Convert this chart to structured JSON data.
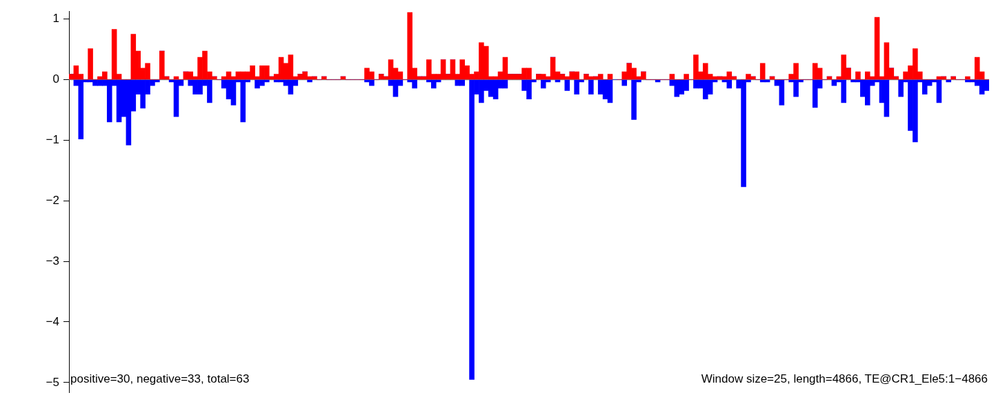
{
  "chart_data": {
    "type": "bar",
    "stacked": true,
    "tick_labels": "y",
    "legend": false,
    "grid": false,
    "categories": [
      null,
      null,
      null,
      null,
      null,
      null,
      null,
      null,
      null,
      null,
      null,
      null,
      null,
      null,
      null,
      null,
      null,
      null,
      null,
      null,
      null,
      null,
      null,
      null,
      null,
      null,
      null,
      null,
      null,
      null,
      null,
      null,
      null,
      null,
      null,
      null,
      null,
      null,
      null,
      null,
      null,
      null,
      null,
      null,
      null,
      null,
      null,
      null,
      null,
      null,
      null,
      null,
      null,
      null,
      null,
      null,
      null,
      null,
      null,
      null,
      null,
      null,
      null,
      null,
      null,
      null,
      null,
      null,
      null,
      null,
      null,
      null,
      null,
      null,
      null,
      null,
      null,
      null,
      null,
      null,
      null,
      null,
      null,
      null,
      null,
      null,
      null,
      null,
      null,
      null,
      null,
      null,
      null,
      null,
      null,
      null,
      null,
      null,
      null,
      null,
      null,
      null,
      null,
      null,
      null,
      null,
      null,
      null,
      null,
      null,
      null,
      null,
      null,
      null,
      null,
      null,
      null,
      null,
      null,
      null,
      null,
      null,
      null,
      null,
      null,
      null,
      null,
      null,
      null,
      null,
      null,
      null,
      null,
      null,
      null,
      null,
      null,
      null,
      null,
      null,
      null,
      null,
      null,
      null,
      null,
      null,
      null,
      null,
      null,
      null,
      null,
      null,
      null,
      null,
      null,
      null,
      null,
      null,
      null,
      null,
      null,
      null,
      null,
      null,
      null,
      null,
      null,
      null,
      null,
      null,
      null,
      null,
      null,
      null,
      null,
      null,
      null,
      null,
      null,
      null,
      null,
      null,
      null,
      null,
      null,
      null,
      null,
      null,
      null,
      null,
      null,
      null,
      null
    ],
    "series": [
      {
        "color": "#ff0000",
        "values": [
          0.09,
          0.23,
          0.09,
          0,
          0.51,
          0,
          0.05,
          0.13,
          0,
          0.83,
          0.09,
          0,
          0,
          0.75,
          0.47,
          0.19,
          0.27,
          0,
          0,
          0.47,
          0.05,
          0,
          0.05,
          0,
          0.13,
          0.13,
          0.05,
          0.37,
          0.47,
          0.13,
          0.05,
          0,
          0.05,
          0.13,
          0.05,
          0.13,
          0.13,
          0.13,
          0.23,
          0.05,
          0.23,
          0.23,
          0.05,
          0.09,
          0.37,
          0.27,
          0.41,
          0.05,
          0.09,
          0.13,
          0.05,
          0.05,
          0,
          0.05,
          0,
          0,
          0,
          0.05,
          0,
          0,
          0,
          0,
          0.19,
          0.13,
          0,
          0.09,
          0.05,
          0.33,
          0.19,
          0.13,
          0,
          1.11,
          0.19,
          0.05,
          0.05,
          0.33,
          0.09,
          0.09,
          0.33,
          0.09,
          0.33,
          0.09,
          0.33,
          0.23,
          0.09,
          0.13,
          0.61,
          0.55,
          0.05,
          0.05,
          0.13,
          0.37,
          0.09,
          0.09,
          0.09,
          0.19,
          0.19,
          0,
          0.09,
          0.09,
          0.05,
          0.37,
          0.13,
          0.09,
          0.05,
          0.13,
          0.13,
          0,
          0.09,
          0.05,
          0.05,
          0.09,
          0,
          0.09,
          null,
          0,
          0.13,
          0.27,
          0.19,
          0.05,
          0.13,
          0,
          0,
          0,
          0,
          0,
          0.09,
          0,
          0,
          0.09,
          0,
          0.41,
          0.13,
          0.27,
          0.09,
          0.05,
          0.05,
          0.05,
          0.13,
          0.05,
          null,
          0,
          0.09,
          0.05,
          0,
          0.27,
          null,
          0.05,
          0,
          0,
          0,
          0.09,
          0.27,
          0,
          0,
          0,
          0.27,
          0.19,
          0,
          0.05,
          0,
          0.05,
          0.41,
          0.19,
          0,
          0.13,
          0,
          0.13,
          0.05,
          1.03,
          0.05,
          0.61,
          0.19,
          0.05,
          0,
          0.13,
          0.23,
          0.51,
          0.13,
          0,
          0,
          0,
          0.05,
          0.05,
          0,
          0.05,
          0,
          0,
          0.05,
          0,
          0.37,
          0.13,
          0
        ]
      },
      {
        "color": "#0000ff",
        "values": [
          0,
          -0.1,
          -0.98,
          -0.04,
          -0.04,
          -0.1,
          -0.1,
          -0.1,
          -0.7,
          -0.1,
          -0.7,
          -0.61,
          -1.08,
          -0.52,
          -0.24,
          -0.47,
          -0.24,
          -0.1,
          -0.04,
          0,
          0,
          -0.04,
          -0.61,
          -0.1,
          0,
          -0.1,
          -0.24,
          -0.24,
          -0.1,
          -0.38,
          0,
          0,
          -0.14,
          -0.32,
          -0.42,
          -0.04,
          -0.7,
          -0.04,
          0,
          -0.14,
          -0.1,
          -0.04,
          0,
          -0.04,
          -0.04,
          -0.1,
          -0.24,
          -0.1,
          0,
          0,
          -0.04,
          0,
          0,
          0,
          0,
          0,
          0,
          0,
          0,
          0,
          0,
          0,
          -0.04,
          -0.1,
          0,
          0,
          0,
          -0.1,
          -0.28,
          -0.1,
          0,
          -0.04,
          -0.14,
          0,
          0,
          -0.04,
          -0.14,
          -0.04,
          0,
          0,
          0,
          -0.1,
          -0.1,
          0,
          -4.95,
          -0.24,
          -0.38,
          -0.18,
          -0.28,
          -0.32,
          -0.14,
          -0.14,
          0,
          0,
          0,
          -0.18,
          -0.32,
          -0.04,
          0,
          -0.14,
          -0.04,
          0,
          -0.04,
          0,
          -0.18,
          0,
          -0.24,
          -0.04,
          0,
          -0.24,
          0,
          -0.24,
          -0.32,
          -0.38,
          0,
          0,
          -0.1,
          0,
          -0.66,
          -0.04,
          0,
          0,
          0,
          -0.04,
          0,
          0,
          -0.1,
          -0.28,
          -0.24,
          -0.18,
          0,
          -0.14,
          -0.14,
          -0.32,
          -0.24,
          -0.04,
          0,
          -0.04,
          -0.14,
          0,
          -0.14,
          -1.77,
          -0.04,
          0,
          0,
          -0.04,
          -0.04,
          0,
          -0.1,
          -0.42,
          0,
          -0.04,
          -0.28,
          -0.04,
          0,
          0,
          -0.46,
          -0.14,
          0,
          0,
          -0.1,
          -0.04,
          -0.38,
          0,
          -0.04,
          -0.04,
          -0.28,
          -0.42,
          -0.1,
          -0.04,
          -0.38,
          -0.61,
          0,
          0,
          -0.28,
          -0.04,
          -0.84,
          -1.03,
          -0.04,
          -0.24,
          -0.1,
          -0.04,
          -0.38,
          0,
          -0.04,
          0,
          0,
          0,
          -0.04,
          -0.04,
          -0.1,
          -0.24,
          -0.18
        ]
      }
    ],
    "ylim": [
      -5.17,
      1.13
    ],
    "yticks": [
      {
        "value": -5,
        "label": "−5"
      },
      {
        "value": -4,
        "label": "−4"
      },
      {
        "value": -3,
        "label": "−3"
      },
      {
        "value": -2,
        "label": "−2"
      },
      {
        "value": -1,
        "label": "−1"
      },
      0,
      1
    ],
    "ref_lines": [
      {
        "axis": "y",
        "value": 0,
        "color": "#808080"
      }
    ],
    "annotations": [
      "positive=30, negative=33, total=63",
      "Window size=25, length=4866, TE@CR1_Ele5:1−4866"
    ]
  }
}
